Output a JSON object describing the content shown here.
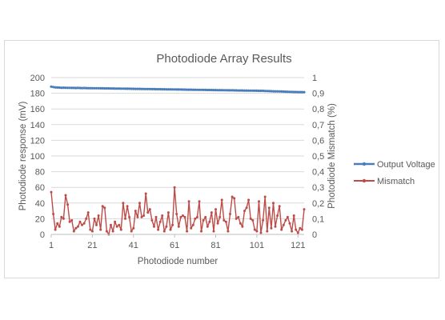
{
  "chart_data": {
    "type": "line",
    "title": "Photodiode Array Results",
    "xlabel": "Photodiode number",
    "ylabel_left": "Photodiode response (mV)",
    "ylabel_right": "Photodiode Mismatch (%)",
    "x_tick_labels": [
      "1",
      "21",
      "41",
      "61",
      "81",
      "101",
      "121"
    ],
    "y_left_tick_labels": [
      "0",
      "20",
      "40",
      "60",
      "80",
      "100",
      "120",
      "140",
      "160",
      "180",
      "200"
    ],
    "y_right_tick_labels": [
      "0",
      "0,1",
      "0,2",
      "0,3",
      "0,4",
      "0,5",
      "0,6",
      "0,7",
      "0,8",
      "0,9",
      "1"
    ],
    "xlim": [
      1,
      124
    ],
    "ylim_left": [
      0,
      200
    ],
    "ylim_right": [
      0,
      1
    ],
    "grid": true,
    "legend_position": "right",
    "series": [
      {
        "name": "Output Voltage",
        "axis": "left",
        "color": "#4a7ebb",
        "x_start": 1,
        "values": [
          188.5,
          188.0,
          187.6,
          187.3,
          187.2,
          187.0,
          187.1,
          187.0,
          186.9,
          186.9,
          186.8,
          186.8,
          186.7,
          186.8,
          186.7,
          186.6,
          186.7,
          186.6,
          186.5,
          186.5,
          186.5,
          186.4,
          186.4,
          186.4,
          186.3,
          186.3,
          186.2,
          186.2,
          186.2,
          186.1,
          186.1,
          186.0,
          186.0,
          186.0,
          185.9,
          185.9,
          185.8,
          185.8,
          185.8,
          185.7,
          185.7,
          185.6,
          185.6,
          185.6,
          185.5,
          185.5,
          185.4,
          185.4,
          185.4,
          185.3,
          185.3,
          185.2,
          185.2,
          185.2,
          185.1,
          185.1,
          185.0,
          185.0,
          185.0,
          184.9,
          184.9,
          184.8,
          184.8,
          184.8,
          184.7,
          184.7,
          184.6,
          184.6,
          184.6,
          184.5,
          184.5,
          184.4,
          184.4,
          184.4,
          184.3,
          184.3,
          184.2,
          184.2,
          184.2,
          184.1,
          184.1,
          184.0,
          184.0,
          184.0,
          183.9,
          183.9,
          183.8,
          183.8,
          183.8,
          183.7,
          183.7,
          183.6,
          183.6,
          183.6,
          183.5,
          183.5,
          183.4,
          183.4,
          183.4,
          183.3,
          183.3,
          183.2,
          183.2,
          183.2,
          183.0,
          182.9,
          182.8,
          182.7,
          182.6,
          182.5,
          182.4,
          182.3,
          182.2,
          182.1,
          182.0,
          181.9,
          181.8,
          181.7,
          181.6,
          181.6,
          181.5,
          181.5,
          181.5,
          181.4
        ]
      },
      {
        "name": "Mismatch",
        "axis": "right",
        "color": "#be4b48",
        "x_start": 1,
        "values": [
          0.27,
          0.13,
          0.03,
          0.07,
          0.05,
          0.11,
          0.1,
          0.25,
          0.19,
          0.08,
          0.09,
          0.02,
          0.04,
          0.05,
          0.08,
          0.06,
          0.07,
          0.1,
          0.14,
          0.03,
          0.02,
          0.1,
          0.06,
          0.12,
          0.03,
          0.18,
          0.17,
          0.02,
          0.0,
          0.06,
          0.02,
          0.08,
          0.05,
          0.06,
          0.03,
          0.2,
          0.1,
          0.18,
          0.11,
          0.02,
          0.04,
          0.15,
          0.11,
          0.2,
          0.11,
          0.12,
          0.26,
          0.14,
          0.16,
          0.09,
          0.05,
          0.11,
          0.03,
          0.08,
          0.12,
          0.02,
          0.05,
          0.14,
          0.03,
          0.06,
          0.3,
          0.13,
          0.05,
          0.11,
          0.12,
          0.11,
          0.02,
          0.21,
          0.04,
          0.06,
          0.1,
          0.11,
          0.21,
          0.02,
          0.09,
          0.11,
          0.05,
          0.08,
          0.14,
          0.02,
          0.16,
          0.07,
          0.11,
          0.22,
          0.09,
          0.08,
          0.02,
          0.13,
          0.24,
          0.23,
          0.1,
          0.11,
          0.07,
          0.05,
          0.15,
          0.17,
          0.22,
          0.1,
          0.09,
          0.03,
          0.02,
          0.21,
          0.01,
          0.09,
          0.24,
          0.02,
          0.17,
          0.04,
          0.2,
          0.05,
          0.12,
          0.18,
          0.03,
          0.06,
          0.09,
          0.11,
          0.07,
          0.02,
          0.12,
          0.03,
          0.01,
          0.04,
          0.03,
          0.16
        ]
      }
    ]
  }
}
